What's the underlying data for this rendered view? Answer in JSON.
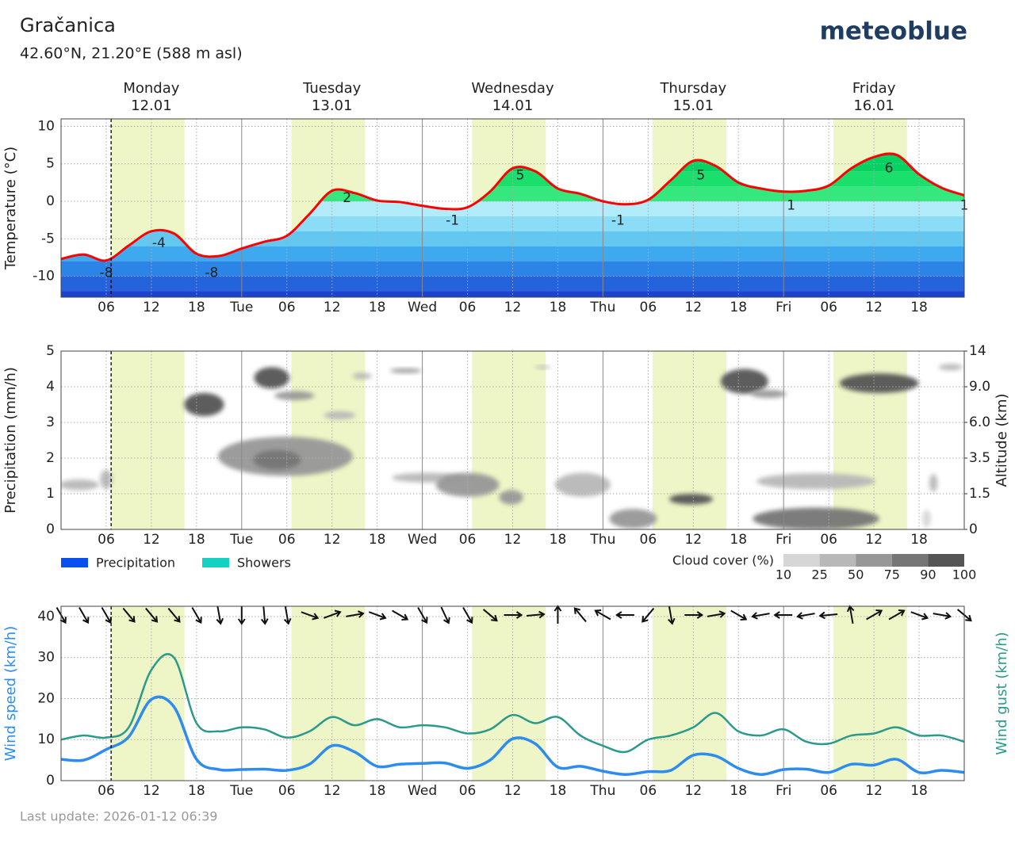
{
  "header": {
    "title": "Gračanica",
    "subtitle": "42.60°N, 21.20°E (588 m asl)",
    "brand": "meteoblue"
  },
  "footer": "Last update: 2026-01-12 06:39",
  "chart_data": [
    {
      "type": "area",
      "ylabel": "Temperature (°C)",
      "xlim": [
        0,
        120
      ],
      "ylim": [
        -12.8,
        11
      ],
      "yticks": [
        -10,
        -5,
        0,
        5,
        10
      ],
      "xticks": [
        {
          "value": 6,
          "label": "06"
        },
        12,
        18,
        {
          "value": 24,
          "label": "Tue"
        },
        {
          "value": 30,
          "label": "06"
        },
        {
          "value": 36,
          "label": "12"
        },
        {
          "value": 42,
          "label": "18"
        },
        {
          "value": 48,
          "label": "Wed"
        },
        {
          "value": 54,
          "label": "06"
        },
        {
          "value": 60,
          "label": "12"
        },
        {
          "value": 66,
          "label": "18"
        },
        {
          "value": 72,
          "label": "Thu"
        },
        {
          "value": 78,
          "label": "06"
        },
        {
          "value": 84,
          "label": "12"
        },
        {
          "value": 90,
          "label": "18"
        },
        {
          "value": 96,
          "label": "Fri"
        },
        {
          "value": 102,
          "label": "06"
        },
        {
          "value": 108,
          "label": "12"
        },
        {
          "value": 114,
          "label": "18"
        }
      ],
      "grid": true,
      "days": [
        {
          "name": "Monday",
          "date": "12.01",
          "x": 12
        },
        {
          "name": "Tuesday",
          "date": "13.01",
          "x": 36
        },
        {
          "name": "Wednesday",
          "date": "14.01",
          "x": 60
        },
        {
          "name": "Thursday",
          "date": "15.01",
          "x": 84
        },
        {
          "name": "Friday",
          "date": "16.01",
          "x": 108
        }
      ],
      "daylight": [
        [
          6.6,
          16.4
        ],
        [
          30.6,
          40.4
        ],
        [
          54.6,
          64.4
        ],
        [
          78.6,
          88.4
        ],
        [
          102.6,
          112.4
        ]
      ],
      "now": 6.65,
      "x": [
        0,
        3,
        6,
        9,
        12,
        15,
        18,
        21,
        24,
        27,
        30,
        33,
        36,
        39,
        42,
        45,
        48,
        51,
        54,
        57,
        60,
        63,
        66,
        69,
        72,
        75,
        78,
        81,
        84,
        87,
        90,
        93,
        96,
        99,
        102,
        105,
        108,
        111,
        114,
        117,
        120
      ],
      "values": [
        -7.7,
        -7.1,
        -7.9,
        -5.9,
        -4.0,
        -4.3,
        -7.0,
        -7.3,
        -6.3,
        -5.4,
        -4.6,
        -1.7,
        1.4,
        1.1,
        0.1,
        -0.1,
        -0.6,
        -1.0,
        -0.8,
        1.3,
        4.4,
        4.0,
        1.7,
        1.0,
        0.0,
        -0.4,
        0.2,
        2.8,
        5.4,
        4.7,
        2.5,
        1.7,
        1.3,
        1.4,
        2.1,
        4.4,
        5.9,
        6.2,
        3.6,
        1.8,
        0.8
      ],
      "color": "#ff0000",
      "extremes": {
        "x": [
          6,
          13,
          20,
          38,
          52,
          61,
          74,
          85,
          97,
          110,
          120
        ],
        "values": [
          -8,
          -4,
          -8,
          2,
          -1,
          5,
          -1,
          5,
          1,
          6,
          1
        ]
      }
    },
    {
      "type": "heatmap",
      "ylabel": "Precipitation (mm/h)",
      "y2label": "Altitude (km)",
      "xlim": [
        0,
        120
      ],
      "ylim": [
        0,
        5
      ],
      "yticks": [
        0,
        1,
        2,
        3,
        4,
        5
      ],
      "y2lim": [
        0,
        5
      ],
      "y2ticks": [
        0,
        {
          "value": 1,
          "label": "1.5"
        },
        {
          "value": 2,
          "label": "3.5"
        },
        {
          "value": 3,
          "label": "6.0"
        },
        {
          "value": 4,
          "label": "9.0"
        },
        {
          "value": 5,
          "label": "14"
        }
      ],
      "xticks": [
        {
          "value": 6,
          "label": "06"
        },
        12,
        18,
        {
          "value": 24,
          "label": "Tue"
        },
        {
          "value": 30,
          "label": "06"
        },
        {
          "value": 36,
          "label": "12"
        },
        {
          "value": 42,
          "label": "18"
        },
        {
          "value": 48,
          "label": "Wed"
        },
        {
          "value": 54,
          "label": "06"
        },
        {
          "value": 60,
          "label": "12"
        },
        {
          "value": 66,
          "label": "18"
        },
        {
          "value": 72,
          "label": "Thu"
        },
        {
          "value": 78,
          "label": "06"
        },
        {
          "value": 84,
          "label": "12"
        },
        {
          "value": 90,
          "label": "18"
        },
        {
          "value": 96,
          "label": "Fri"
        },
        {
          "value": 102,
          "label": "06"
        },
        {
          "value": 108,
          "label": "12"
        },
        {
          "value": 114,
          "label": "18"
        }
      ],
      "grid": true,
      "daylight": [
        [
          6.6,
          16.4
        ],
        [
          30.6,
          40.4
        ],
        [
          54.6,
          64.4
        ],
        [
          78.6,
          88.4
        ],
        [
          102.6,
          112.4
        ]
      ],
      "now": 6.65,
      "series": [
        {
          "name": "Precipitation",
          "color": "#0a50f0"
        },
        {
          "name": "Showers",
          "color": "#12d3c2"
        }
      ],
      "cloud_legend": {
        "title": "Cloud cover (%)",
        "levels": [
          10,
          25,
          50,
          75,
          90,
          100
        ],
        "colors": [
          "#d6d6d6",
          "#b8b8b8",
          "#979797",
          "#767676",
          "#555555"
        ]
      },
      "clouds": {
        "x": [
          19,
          28,
          31,
          40,
          45.8,
          37,
          29.8,
          28.7,
          2.4,
          6,
          48.7,
          54,
          59.8,
          69.3,
          76,
          83.7,
          90.8,
          94,
          100.3,
          100.3,
          108.7,
          118.2,
          64,
          115.9,
          115
        ],
        "y": [
          3.5,
          4.25,
          3.75,
          4.3,
          4.45,
          3.2,
          2.05,
          1.95,
          1.25,
          1.4,
          1.45,
          1.25,
          0.9,
          1.25,
          0.3,
          0.85,
          4.15,
          3.8,
          1.35,
          0.3,
          4.1,
          4.55,
          4.55,
          1.3,
          0.3
        ],
        "duration": [
          5.3,
          4.7,
          5.3,
          2.6,
          4.2,
          4.2,
          17.9,
          6.3,
          5.3,
          1.6,
          9.5,
          8.4,
          3.2,
          7.4,
          6.3,
          5.8,
          6.3,
          4.7,
          15.8,
          16.8,
          10.5,
          3.2,
          2.1,
          1.1,
          1.1
        ],
        "depth": [
          0.65,
          0.6,
          0.25,
          0.18,
          0.13,
          0.22,
          1.1,
          0.55,
          0.3,
          0.55,
          0.27,
          0.67,
          0.4,
          0.67,
          0.55,
          0.3,
          0.7,
          0.22,
          0.45,
          0.62,
          0.55,
          0.18,
          0.09,
          0.5,
          0.5
        ],
        "cover": [
          90,
          90,
          50,
          25,
          50,
          25,
          50,
          75,
          25,
          25,
          25,
          50,
          50,
          25,
          50,
          100,
          90,
          50,
          25,
          75,
          90,
          25,
          25,
          25,
          10
        ]
      }
    },
    {
      "type": "line",
      "ylabel": "Wind speed (km/h)",
      "y2label": "Wind gust (km/h)",
      "xlim": [
        0,
        120
      ],
      "ylim": [
        0,
        42.5
      ],
      "yticks": [
        0,
        10,
        20,
        30,
        40
      ],
      "y2lim": [
        0,
        42.5
      ],
      "xticks": [
        {
          "value": 6,
          "label": "06"
        },
        12,
        18,
        {
          "value": 24,
          "label": "Tue"
        },
        {
          "value": 30,
          "label": "06"
        },
        {
          "value": 36,
          "label": "12"
        },
        {
          "value": 42,
          "label": "18"
        },
        {
          "value": 48,
          "label": "Wed"
        },
        {
          "value": 54,
          "label": "06"
        },
        {
          "value": 60,
          "label": "12"
        },
        {
          "value": 66,
          "label": "18"
        },
        {
          "value": 72,
          "label": "Thu"
        },
        {
          "value": 78,
          "label": "06"
        },
        {
          "value": 84,
          "label": "12"
        },
        {
          "value": 90,
          "label": "18"
        },
        {
          "value": 96,
          "label": "Fri"
        },
        {
          "value": 102,
          "label": "06"
        },
        {
          "value": 108,
          "label": "12"
        },
        {
          "value": 114,
          "label": "18"
        }
      ],
      "grid": true,
      "daylight": [
        [
          6.6,
          16.4
        ],
        [
          30.6,
          40.4
        ],
        [
          54.6,
          64.4
        ],
        [
          78.6,
          88.4
        ],
        [
          102.6,
          112.4
        ]
      ],
      "now": 6.65,
      "x": [
        0,
        3,
        6,
        9,
        12,
        15,
        18,
        21,
        24,
        27,
        30,
        33,
        36,
        39,
        42,
        45,
        48,
        51,
        54,
        57,
        60,
        63,
        66,
        69,
        72,
        75,
        78,
        81,
        84,
        87,
        90,
        93,
        96,
        99,
        102,
        105,
        108,
        111,
        114,
        117,
        120
      ],
      "series": [
        {
          "color": "#2d8cf0",
          "values": [
            5.2,
            5.0,
            7.6,
            10.7,
            19.8,
            18,
            5.2,
            2.7,
            2.7,
            2.8,
            2.5,
            4,
            8.5,
            7,
            3.5,
            4,
            4.2,
            4.3,
            3,
            5,
            10.2,
            9,
            3.3,
            3.5,
            2.3,
            1.5,
            2.2,
            2.5,
            6.2,
            6,
            3,
            1.5,
            2.7,
            2.8,
            2,
            4,
            3.8,
            5.2,
            2,
            2.5,
            2
          ]
        },
        {
          "color": "#2a9a8c",
          "axis": "y2",
          "values": [
            10,
            11,
            10.5,
            13,
            27,
            30,
            14,
            12,
            13,
            12.5,
            10.5,
            12,
            15.5,
            13.5,
            15,
            13,
            13.5,
            13,
            11.5,
            12.5,
            16,
            14,
            15.5,
            11,
            8.5,
            7,
            10,
            11,
            13,
            16.5,
            12,
            11,
            12.5,
            9.5,
            9,
            11,
            11.5,
            13,
            11,
            11,
            9.5
          ]
        }
      ],
      "wind_direction": [
        150,
        150,
        150,
        140,
        140,
        140,
        150,
        170,
        180,
        175,
        170,
        110,
        70,
        80,
        110,
        120,
        150,
        155,
        150,
        130,
        90,
        85,
        0,
        320,
        300,
        270,
        220,
        170,
        90,
        80,
        120,
        260,
        270,
        260,
        265,
        350,
        60,
        60,
        110,
        100,
        130
      ]
    }
  ]
}
